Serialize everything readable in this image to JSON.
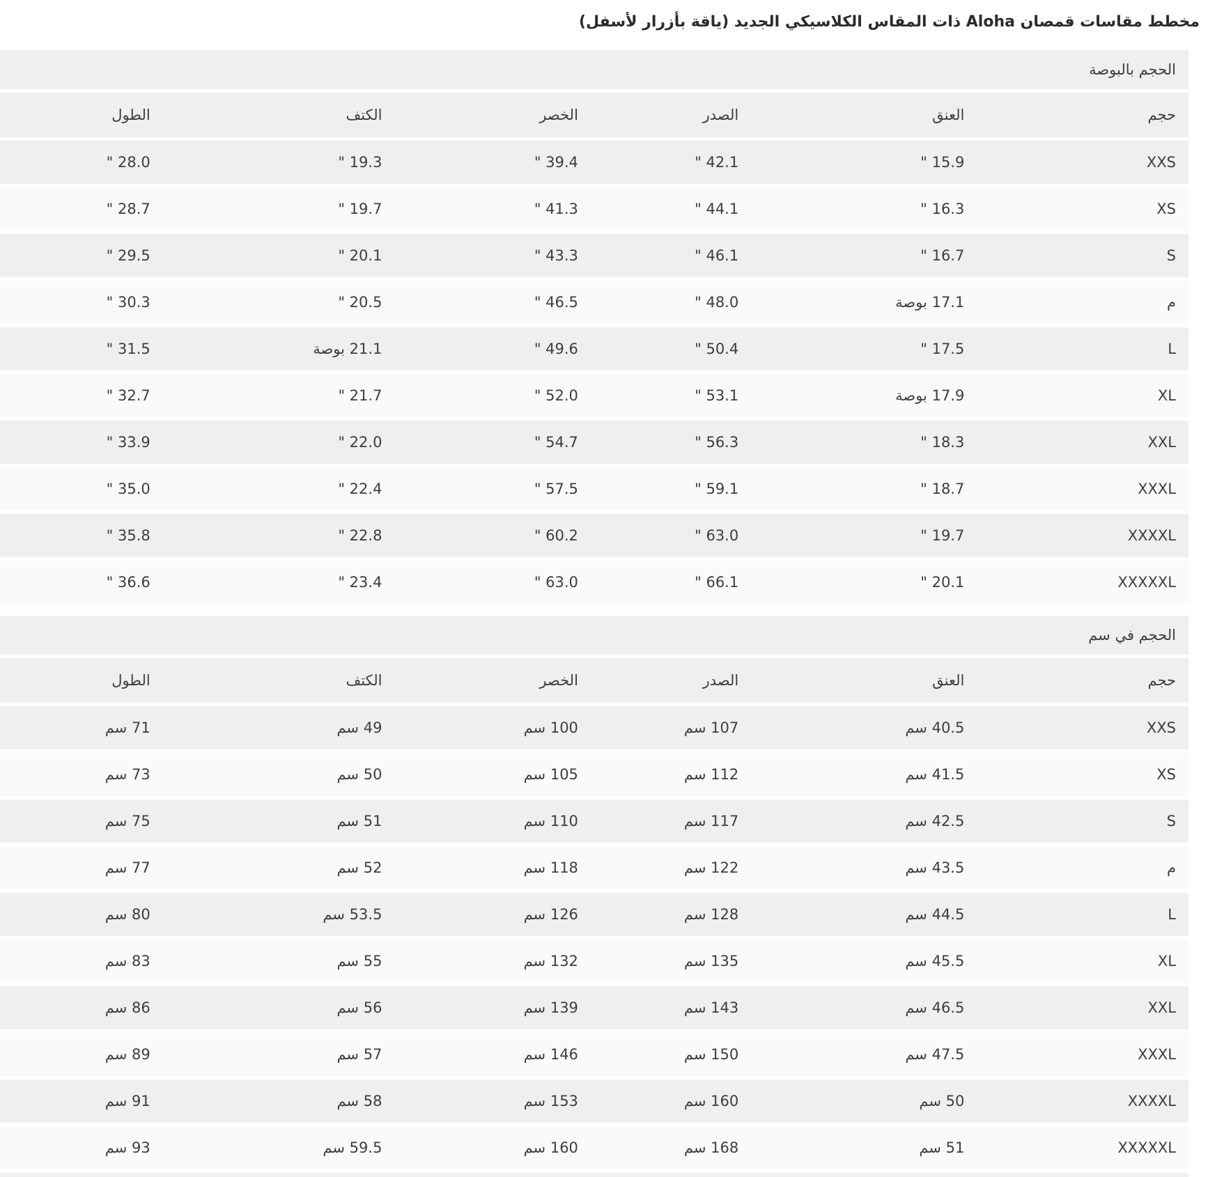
{
  "page": {
    "title": "مخطط مقاسات قمصان Aloha ذات المقاس الكلاسيكي الجديد (ياقة بأزرار لأسفل)"
  },
  "colors": {
    "band_gray": "#efefef",
    "row_light": "#fafafa",
    "text": "#3d3d3d",
    "background": "#ffffff"
  },
  "column_keys": [
    "size",
    "neck",
    "chest",
    "waist",
    "shoulder",
    "length"
  ],
  "tables": [
    {
      "section_title": "الحجم بالبوصة",
      "columns": [
        "حجم",
        "العنق",
        "الصدر",
        "الخصر",
        "الكتف",
        "الطول"
      ],
      "rows": [
        [
          "XXS",
          "15.9 \"",
          "42.1 \"",
          "39.4 \"",
          "19.3 \"",
          "28.0 \""
        ],
        [
          "XS",
          "16.3 \"",
          "44.1 \"",
          "41.3 \"",
          "19.7 \"",
          "28.7 \""
        ],
        [
          "S",
          "16.7 \"",
          "46.1 \"",
          "43.3 \"",
          "20.1 \"",
          "29.5 \""
        ],
        [
          "م",
          "17.1 بوصة",
          "48.0 \"",
          "46.5 \"",
          "20.5 \"",
          "30.3 \""
        ],
        [
          "L",
          "17.5 \"",
          "50.4 \"",
          "49.6 \"",
          "21.1 بوصة",
          "31.5 \""
        ],
        [
          "XL",
          "17.9 بوصة",
          "53.1 \"",
          "52.0 \"",
          "21.7 \"",
          "32.7 \""
        ],
        [
          "XXL",
          "18.3 \"",
          "56.3 \"",
          "54.7 \"",
          "22.0 \"",
          "33.9 \""
        ],
        [
          "XXXL",
          "18.7 \"",
          "59.1 \"",
          "57.5 \"",
          "22.4 \"",
          "35.0 \""
        ],
        [
          "XXXXL",
          "19.7 \"",
          "63.0 \"",
          "60.2 \"",
          "22.8 \"",
          "35.8 \""
        ],
        [
          "XXXXXL",
          "20.1 \"",
          "66.1 \"",
          "63.0 \"",
          "23.4 \"",
          "36.6 \""
        ]
      ]
    },
    {
      "section_title": "الحجم في سم",
      "columns": [
        "حجم",
        "العنق",
        "الصدر",
        "الخصر",
        "الكتف",
        "الطول"
      ],
      "rows": [
        [
          "XXS",
          "40.5 سم",
          "107 سم",
          "100 سم",
          "49 سم",
          "71 سم"
        ],
        [
          "XS",
          "41.5 سم",
          "112 سم",
          "105 سم",
          "50 سم",
          "73 سم"
        ],
        [
          "S",
          "42.5 سم",
          "117 سم",
          "110 سم",
          "51 سم",
          "75 سم"
        ],
        [
          "م",
          "43.5 سم",
          "122 سم",
          "118 سم",
          "52 سم",
          "77 سم"
        ],
        [
          "L",
          "44.5 سم",
          "128 سم",
          "126 سم",
          "53.5 سم",
          "80 سم"
        ],
        [
          "XL",
          "45.5 سم",
          "135 سم",
          "132 سم",
          "55 سم",
          "83 سم"
        ],
        [
          "XXL",
          "46.5 سم",
          "143 سم",
          "139 سم",
          "56 سم",
          "86 سم"
        ],
        [
          "XXXL",
          "47.5 سم",
          "150 سم",
          "146 سم",
          "57 سم",
          "89 سم"
        ],
        [
          "XXXXL",
          "50 سم",
          "160 سم",
          "153 سم",
          "58 سم",
          "91 سم"
        ],
        [
          "XXXXXL",
          "51 سم",
          "168 سم",
          "160 سم",
          "59.5 سم",
          "93 سم"
        ]
      ]
    }
  ]
}
